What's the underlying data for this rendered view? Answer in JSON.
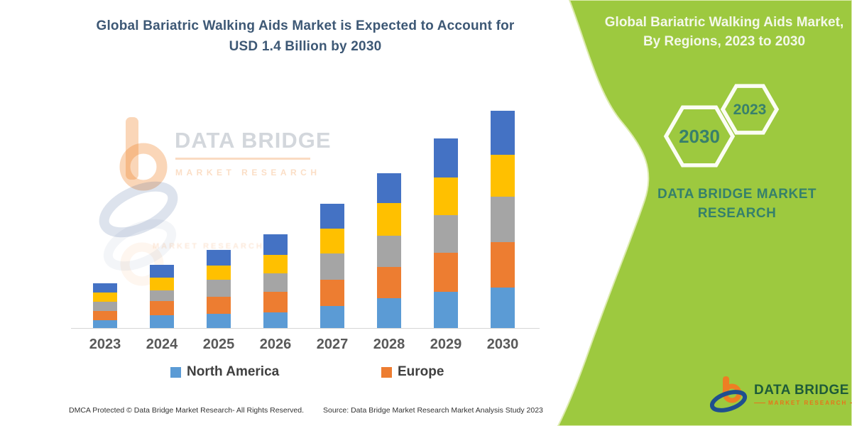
{
  "left_panel": {
    "title": "Global Bariatric Walking Aids Market is Expected to Account for USD 1.4 Billion by 2030",
    "footer_left": "DMCA Protected © Data Bridge Market Research-  All Rights Reserved.",
    "footer_source": "Source: Data Bridge Market Research  Market Analysis Study 2023"
  },
  "chart_data": {
    "type": "bar",
    "stacked": true,
    "title": "Global Bariatric Walking Aids Market is Expected to Account for USD 1.4 Billion by 2030",
    "categories": [
      "2023",
      "2024",
      "2025",
      "2026",
      "2027",
      "2028",
      "2029",
      "2030"
    ],
    "value_unit": "USD Billion (estimated from bar heights; 2030 total stated as 1.4)",
    "series": [
      {
        "name": "North America",
        "color": "#5B9BD5",
        "values": [
          0.05,
          0.08,
          0.09,
          0.1,
          0.14,
          0.19,
          0.23,
          0.26
        ]
      },
      {
        "name": "Europe",
        "color": "#ED7D31",
        "values": [
          0.06,
          0.09,
          0.11,
          0.13,
          0.17,
          0.2,
          0.25,
          0.29
        ]
      },
      {
        "name": "",
        "color": "#A5A5A5",
        "values": [
          0.06,
          0.07,
          0.11,
          0.12,
          0.17,
          0.2,
          0.24,
          0.29
        ]
      },
      {
        "name": "",
        "color": "#FFC000",
        "values": [
          0.06,
          0.08,
          0.09,
          0.12,
          0.16,
          0.21,
          0.24,
          0.27
        ]
      },
      {
        "name": "",
        "color": "#4472C4",
        "values": [
          0.06,
          0.08,
          0.1,
          0.13,
          0.16,
          0.19,
          0.25,
          0.28
        ]
      }
    ],
    "totals": [
      0.29,
      0.4,
      0.5,
      0.6,
      0.8,
      0.99,
      1.21,
      1.39
    ],
    "legend": [
      "North America",
      "Europe"
    ],
    "legend_position": "bottom",
    "grid": false,
    "y_axis_visible": false,
    "xlabel": "",
    "ylabel": ""
  },
  "watermark": {
    "brand": "DATA BRIDGE",
    "sub": "MARKET RESEARCH"
  },
  "right_panel": {
    "background": "#9DC93F",
    "title": "Global Bariatric Walking Aids Market, By Regions, 2023 to 2030",
    "hexagon_large_label": "2030",
    "hexagon_small_label": "2023",
    "brand_text": "DATA BRIDGE MARKET RESEARCH",
    "accent_text_color": "#35806B"
  },
  "logo": {
    "brand": "DATA BRIDGE",
    "sub": "MARKET RESEARCH"
  }
}
